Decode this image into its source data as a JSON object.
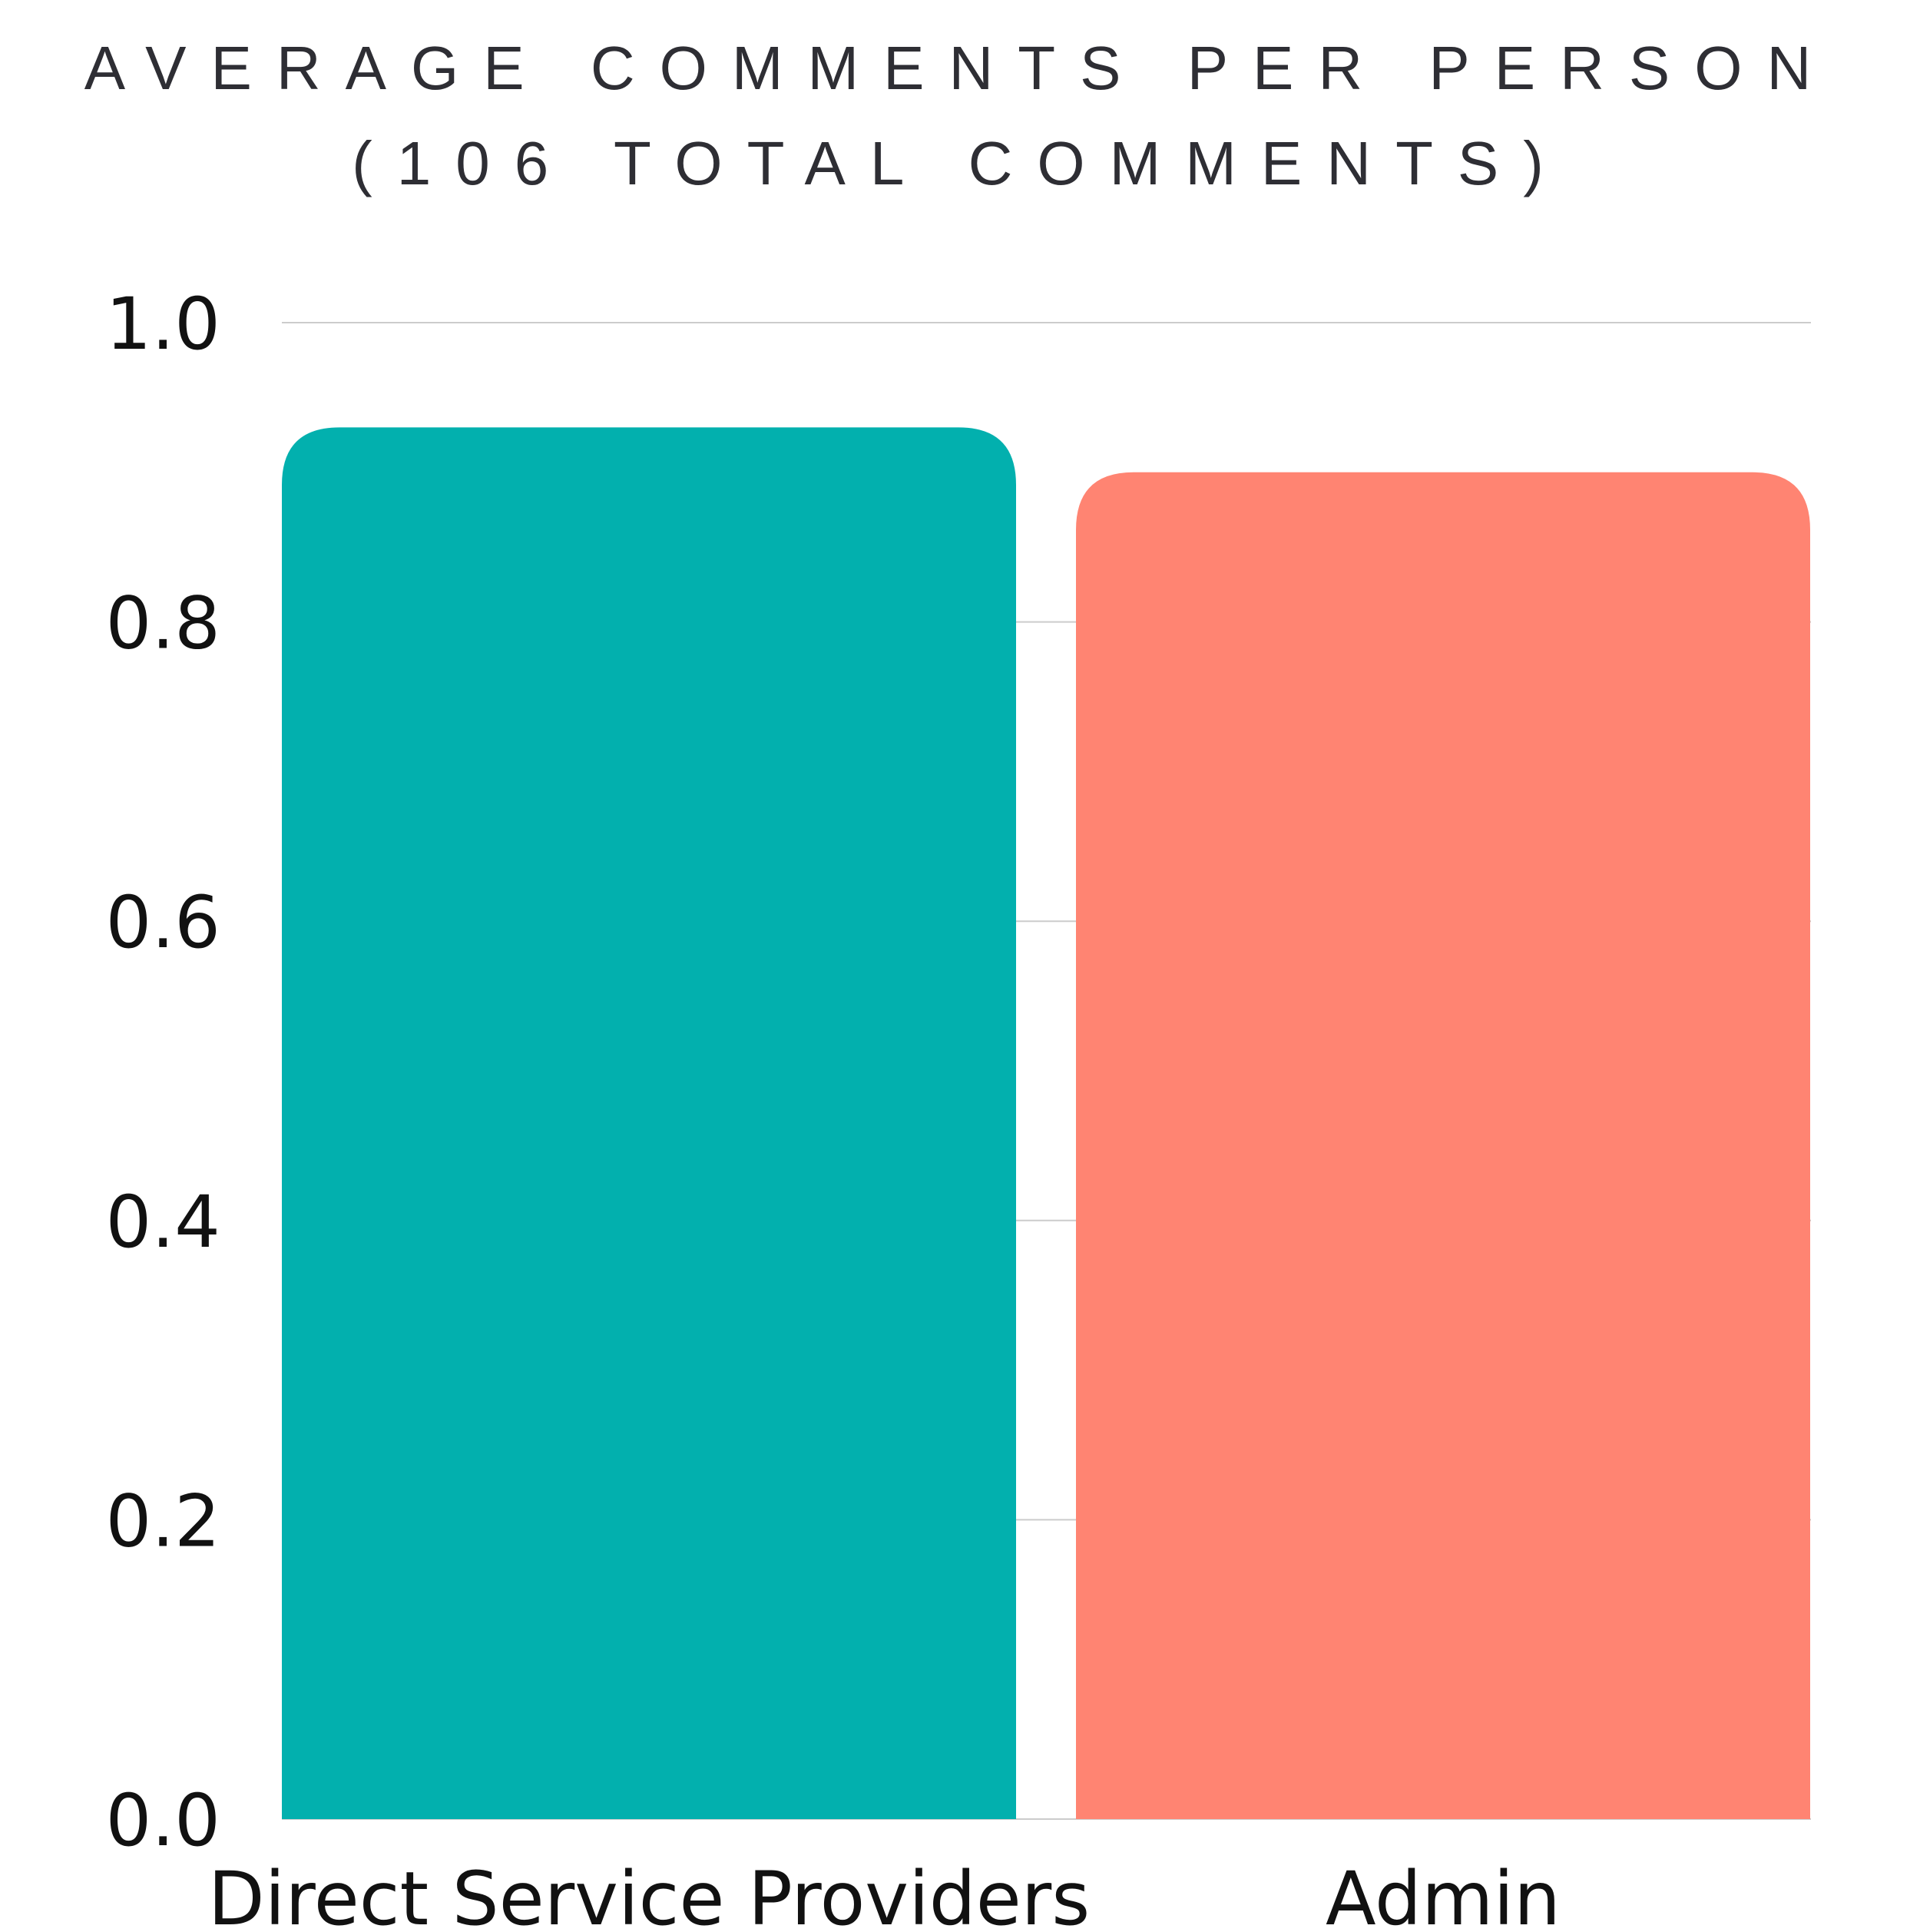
{
  "chart_data": {
    "type": "bar",
    "title_line1": "AVERAGE COMMENTS PER PERSON",
    "title_line2": "(106 TOTAL COMMENTS)",
    "categories": [
      "Direct Service Providers",
      "Admin"
    ],
    "values": [
      0.93,
      0.9
    ],
    "colors": [
      "#02b0ae",
      "#ff8472"
    ],
    "ylim": [
      0,
      1.0
    ],
    "yticks": [
      0.0,
      0.2,
      0.4,
      0.6,
      0.8,
      1.0
    ],
    "ytick_labels": [
      "0.0",
      "0.2",
      "0.4",
      "0.6",
      "0.8",
      "1.0"
    ],
    "grid": true,
    "gridline_color": "#cccccc"
  }
}
